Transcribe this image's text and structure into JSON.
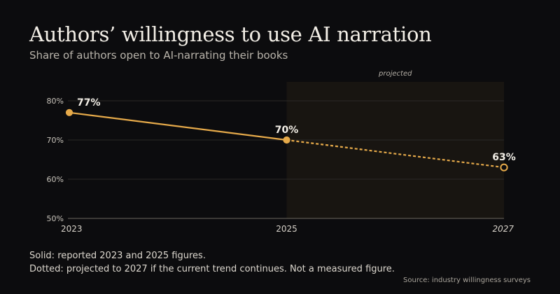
{
  "header": {
    "title": "Authors’ willingness to use AI narration",
    "subtitle": "Share of authors open to AI-narrating their books"
  },
  "notes": {
    "solid": "Solid: reported 2023 and 2025 figures.",
    "dotted": "Dotted: projected to 2027 if the current trend continues. Not a measured figure."
  },
  "source": "Source: industry willingness surveys",
  "colors": {
    "accent": "#e6aa4a",
    "background": "#0c0c0e",
    "projection_band": "#181511"
  },
  "chart_data": {
    "type": "line",
    "title": "Authors’ willingness to use AI narration",
    "subtitle": "Share of authors open to AI-narrating their books",
    "xlabel": "",
    "ylabel": "",
    "x": [
      2023,
      2025,
      2027
    ],
    "x_tick_labels": [
      "2023",
      "2025",
      "2027"
    ],
    "ylim": [
      50,
      85
    ],
    "y_ticks": [
      50,
      60,
      70,
      80
    ],
    "y_tick_labels": [
      "50%",
      "60%",
      "70%",
      "80%"
    ],
    "grid": "horizontal",
    "series": [
      {
        "values": [
          77,
          70,
          63
        ],
        "data_labels": [
          "77%",
          "70%",
          "63%"
        ],
        "projected_from_index": 1
      }
    ],
    "projection": {
      "from": 2025,
      "to": 2027,
      "label": "projected"
    }
  }
}
